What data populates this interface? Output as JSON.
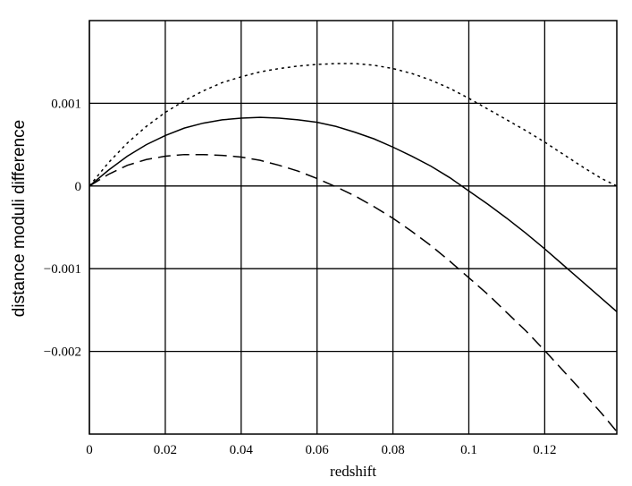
{
  "chart_data": {
    "type": "line",
    "title": "",
    "xlabel": "redshift",
    "ylabel": "distance moduli difference",
    "xlim": [
      0,
      0.139
    ],
    "ylim": [
      -0.003,
      0.002
    ],
    "xticks": [
      0,
      0.02,
      0.04,
      0.06,
      0.08,
      0.1,
      0.12
    ],
    "xtick_labels": [
      "0",
      "0.02",
      "0.04",
      "0.06",
      "0.08",
      "0.1",
      "0.12"
    ],
    "yticks": [
      0.001,
      0,
      -0.001,
      -0.002
    ],
    "ytick_labels": [
      "0.001",
      "0",
      "−0.001",
      "−0.002"
    ],
    "grid": true,
    "x": [
      0,
      0.005,
      0.01,
      0.015,
      0.02,
      0.025,
      0.03,
      0.035,
      0.04,
      0.045,
      0.05,
      0.055,
      0.06,
      0.065,
      0.07,
      0.075,
      0.08,
      0.085,
      0.09,
      0.095,
      0.1,
      0.105,
      0.11,
      0.115,
      0.12,
      0.125,
      0.13,
      0.135,
      0.139
    ],
    "series": [
      {
        "style": "dotted",
        "values": [
          0,
          0.00028,
          0.00052,
          0.00072,
          0.00089,
          0.00103,
          0.00115,
          0.00125,
          0.00132,
          0.00138,
          0.00142,
          0.00145,
          0.00147,
          0.00148,
          0.00148,
          0.00146,
          0.00142,
          0.00136,
          0.00128,
          0.00118,
          0.00106,
          0.00093,
          0.0008,
          0.00067,
          0.00053,
          0.00038,
          0.00023,
          9e-05,
          0.0
        ]
      },
      {
        "style": "solid",
        "values": [
          0,
          0.00019,
          0.00036,
          0.0005,
          0.00061,
          0.0007,
          0.00076,
          0.0008,
          0.00082,
          0.00083,
          0.00082,
          0.0008,
          0.00077,
          0.00072,
          0.00065,
          0.00057,
          0.00047,
          0.00036,
          0.00024,
          0.0001,
          -6e-05,
          -0.00022,
          -0.00039,
          -0.00057,
          -0.00076,
          -0.00096,
          -0.00116,
          -0.00136,
          -0.00152
        ]
      },
      {
        "style": "dashed",
        "values": [
          0,
          0.00014,
          0.00025,
          0.00032,
          0.00036,
          0.00038,
          0.00038,
          0.00037,
          0.00035,
          0.00031,
          0.00025,
          0.00018,
          9e-05,
          -1e-05,
          -0.00012,
          -0.00025,
          -0.00039,
          -0.00055,
          -0.00072,
          -0.00091,
          -0.00111,
          -0.00131,
          -0.00153,
          -0.00175,
          -0.00199,
          -0.00224,
          -0.00249,
          -0.00275,
          -0.00297
        ]
      }
    ]
  }
}
